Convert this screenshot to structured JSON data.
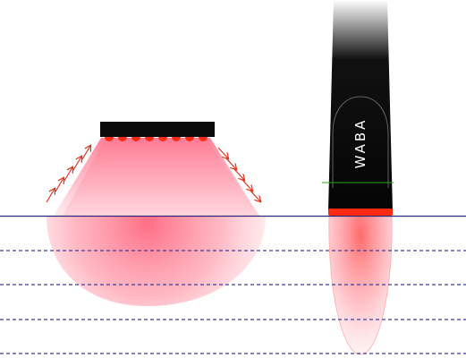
{
  "device": {
    "label": "WABA"
  },
  "colors": {
    "background": "#ffffff",
    "surface_line": "#2b2a7a",
    "depth_lines": "#3f3d99",
    "device_body": "#0b0b0b",
    "emitter": "#ff2a12",
    "beam": "#ff4f6f",
    "arrows": "#e2311b",
    "marker_line": "#22aa22",
    "label_text": "#ffffff"
  }
}
